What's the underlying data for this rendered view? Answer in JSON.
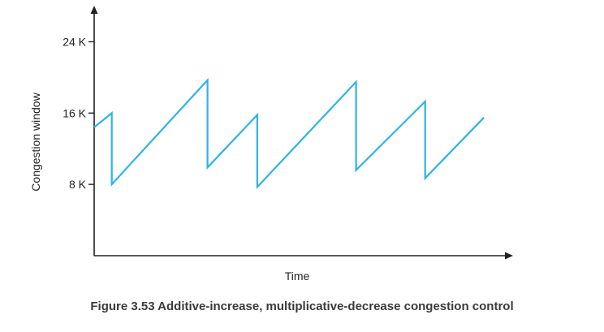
{
  "caption": "Figure 3.53 Additive-increase, multiplicative-decrease congestion control",
  "chart_data": {
    "type": "line",
    "title": "",
    "xlabel": "Time",
    "ylabel": "Congestion window",
    "x_ticks_shown": false,
    "y_ticks": [
      {
        "value": 8,
        "label": "8 K"
      },
      {
        "value": 16,
        "label": "16 K"
      },
      {
        "value": 24,
        "label": "24 K"
      }
    ],
    "ylim": [
      0,
      27.5
    ],
    "xlim": [
      0,
      100
    ],
    "grid": false,
    "legend": "none",
    "line_color": "#2fb3e6",
    "axis_color": "#222222",
    "series": [
      {
        "x": [
          0,
          4.5,
          4.5,
          28.9,
          28.9,
          41.6,
          41.6,
          66.8,
          66.8,
          84.4,
          84.4,
          99.4
        ],
        "y": [
          14.4,
          16.0,
          8.0,
          19.7,
          9.9,
          15.8,
          7.7,
          19.5,
          9.6,
          17.3,
          8.7,
          15.5
        ]
      }
    ]
  }
}
